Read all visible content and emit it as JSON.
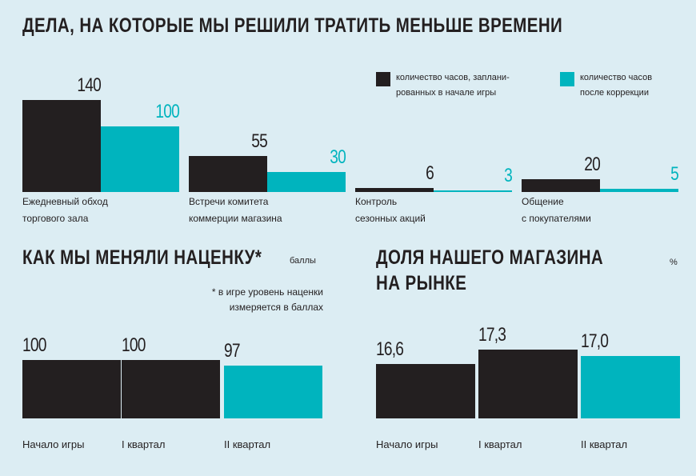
{
  "chart_data": [
    {
      "type": "bar",
      "title": "ДЕЛА, НА КОТОРЫЕ МЫ РЕШИЛИ ТРАТИТЬ МЕНЬШЕ ВРЕМЕНИ",
      "categories": [
        "Ежедневный обход\nторгового зала",
        "Встречи комитета\nкоммерции магазина",
        "Контроль\nсезонных акций",
        "Общение\nс покупателями"
      ],
      "series": [
        {
          "name": "количество часов, заплани-\nрованных в начале игры",
          "color": "#231f20",
          "values": [
            140,
            55,
            6,
            20
          ]
        },
        {
          "name": "количество часов\nпосле коррекции",
          "color": "#00b4be",
          "values": [
            100,
            30,
            3,
            5
          ]
        }
      ],
      "ylim": [
        0,
        140
      ]
    },
    {
      "type": "bar",
      "title": "КАК МЫ МЕНЯЛИ НАЦЕНКУ*",
      "unit": "баллы",
      "note": "* в игре уровень наценки\nизмеряется в баллах",
      "categories": [
        "Начало игры",
        "I квартал",
        "II квартал"
      ],
      "values": [
        100,
        100,
        97
      ],
      "colors": [
        "#231f20",
        "#231f20",
        "#00b4be"
      ],
      "ylim": [
        70,
        100
      ]
    },
    {
      "type": "bar",
      "title": "ДОЛЯ НАШЕГО МАГАЗИНА\nНА РЫНКЕ",
      "unit": "%",
      "categories": [
        "Начало игры",
        "I квартал",
        "II квартал"
      ],
      "values": [
        16.6,
        17.3,
        17.0
      ],
      "value_labels": [
        "16,6",
        "17,3",
        "17,0"
      ],
      "colors": [
        "#231f20",
        "#231f20",
        "#00b4be"
      ],
      "ylim": [
        14,
        17.6
      ]
    }
  ]
}
